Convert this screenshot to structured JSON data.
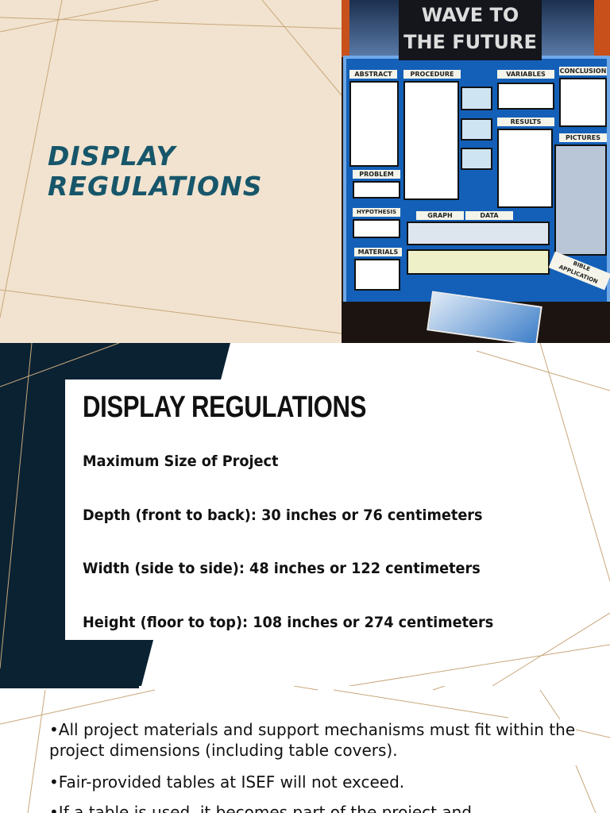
{
  "slide1": {
    "title_line1": "DISPLAY",
    "title_line2": "REGULATIONS",
    "photo": {
      "banner_line1": "WAVE TO",
      "banner_line2": "THE FUTURE",
      "board_labels": [
        "ABSTRACT",
        "PROCEDURE",
        "VARIABLES",
        "CONCLUSION",
        "RESULTS",
        "PICTURES",
        "PROBLEM",
        "HYPOTHESIS",
        "GRAPH",
        "DATA",
        "MATERIALS",
        "BIBLE APPLICATION"
      ]
    }
  },
  "slide2": {
    "heading": "DISPLAY REGULATIONS",
    "lines": [
      "Maximum Size of Project",
      "Depth (front to back): 30 inches or 76 centimeters",
      "Width (side to side): 48 inches or 122 centimeters",
      "Height (floor to top): 108 inches or 274 centimeters"
    ]
  },
  "slide3": {
    "bullets": [
      "•All project materials and support mechanisms must fit within the project dimensions (including table covers).",
      "•Fair-provided tables at ISEF will not exceed.",
      "•If a table is used, it becomes part of the project and"
    ]
  },
  "colors": {
    "title_teal": "#17566a",
    "navy": "#0b2233",
    "beige": "#f1e3cf",
    "line_tan": "#c9a77c"
  }
}
